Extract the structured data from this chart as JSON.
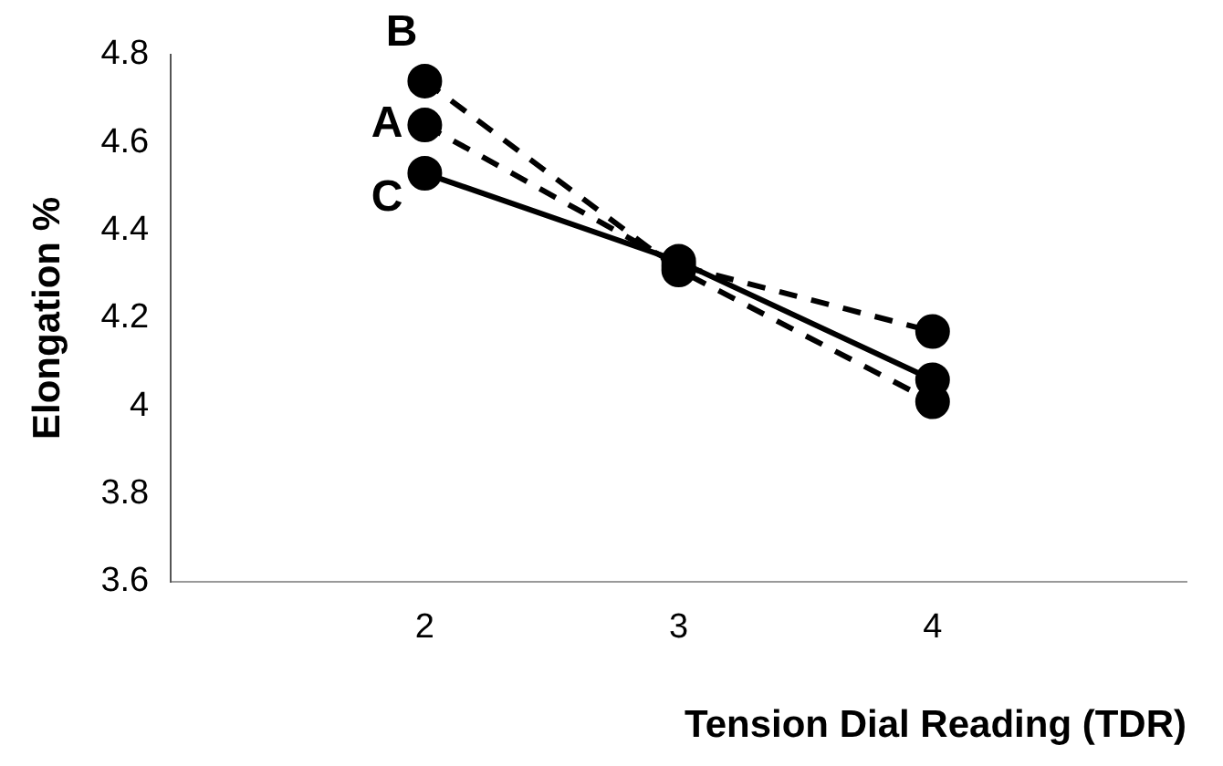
{
  "chart_data": {
    "type": "line",
    "xlabel": "Tension Dial Reading (TDR)",
    "ylabel": "Elongation %",
    "x": [
      2,
      3,
      4
    ],
    "xlim": [
      1,
      5
    ],
    "xticks": [
      2,
      3,
      4
    ],
    "ylim": [
      3.6,
      4.8
    ],
    "yticks": [
      3.6,
      3.8,
      4,
      4.2,
      4.4,
      4.6,
      4.8
    ],
    "grid": false,
    "legend": false,
    "marker": "circle",
    "series": [
      {
        "name": "A",
        "color": "#000000",
        "line_style": "dashed",
        "values": [
          4.64,
          4.32,
          4.17
        ]
      },
      {
        "name": "B",
        "color": "#000000",
        "line_style": "dashed",
        "values": [
          4.74,
          4.31,
          4.01
        ]
      },
      {
        "name": "C",
        "color": "#000000",
        "line_style": "solid",
        "values": [
          4.53,
          4.33,
          4.06
        ]
      }
    ]
  }
}
